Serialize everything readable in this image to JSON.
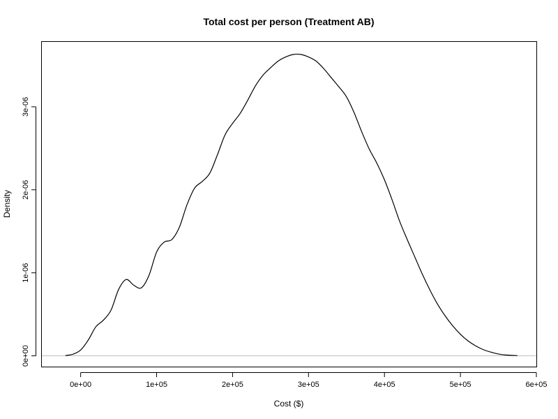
{
  "chart_data": {
    "type": "line",
    "title": "Total cost per person (Treatment AB)",
    "xlabel": "Cost ($)",
    "ylabel": "Density",
    "xlim": [
      -52000,
      600000
    ],
    "ylim": [
      -1.3e-07,
      3.79e-06
    ],
    "x_ticks": [
      {
        "value": 0,
        "label": "0e+00"
      },
      {
        "value": 100000,
        "label": "1e+05"
      },
      {
        "value": 200000,
        "label": "2e+05"
      },
      {
        "value": 300000,
        "label": "3e+05"
      },
      {
        "value": 400000,
        "label": "4e+05"
      },
      {
        "value": 500000,
        "label": "5e+05"
      },
      {
        "value": 600000,
        "label": "6e+05"
      }
    ],
    "y_ticks": [
      {
        "value": 0,
        "label": "0e+00"
      },
      {
        "value": 1e-06,
        "label": "1e-06"
      },
      {
        "value": 2e-06,
        "label": "2e-06"
      },
      {
        "value": 3e-06,
        "label": "3e-06"
      }
    ],
    "baseline": 0,
    "grid": false,
    "series": [
      {
        "color": "#000000",
        "x": [
          -20000,
          -10000,
          0,
          10000,
          20000,
          30000,
          40000,
          50000,
          60000,
          70000,
          80000,
          90000,
          100000,
          110000,
          120000,
          130000,
          140000,
          150000,
          160000,
          170000,
          180000,
          190000,
          200000,
          210000,
          220000,
          230000,
          240000,
          250000,
          260000,
          270000,
          280000,
          290000,
          300000,
          310000,
          320000,
          330000,
          340000,
          350000,
          360000,
          370000,
          380000,
          390000,
          400000,
          410000,
          420000,
          430000,
          440000,
          450000,
          460000,
          470000,
          480000,
          490000,
          500000,
          510000,
          520000,
          530000,
          540000,
          550000,
          560000,
          575000
        ],
        "y": [
          3e-09,
          2e-08,
          7e-08,
          1.9e-07,
          3.5e-07,
          4.3e-07,
          5.5e-07,
          8e-07,
          9.2e-07,
          8.5e-07,
          8.2e-07,
          9.7e-07,
          1.25e-06,
          1.37e-06,
          1.4e-06,
          1.55e-06,
          1.82e-06,
          2.02e-06,
          2.1e-06,
          2.2e-06,
          2.42e-06,
          2.66e-06,
          2.8e-06,
          2.92e-06,
          3.08e-06,
          3.25e-06,
          3.38e-06,
          3.47e-06,
          3.55e-06,
          3.6e-06,
          3.63e-06,
          3.63e-06,
          3.6e-06,
          3.55e-06,
          3.46e-06,
          3.35e-06,
          3.24e-06,
          3.12e-06,
          2.93e-06,
          2.7e-06,
          2.49e-06,
          2.32e-06,
          2.12e-06,
          1.88e-06,
          1.62e-06,
          1.4e-06,
          1.19e-06,
          9.8e-07,
          7.9e-07,
          6.2e-07,
          4.8e-07,
          3.6e-07,
          2.6e-07,
          1.8e-07,
          1.2e-07,
          7.5e-08,
          4.5e-08,
          2.2e-08,
          1e-08,
          3e-09
        ]
      }
    ]
  }
}
